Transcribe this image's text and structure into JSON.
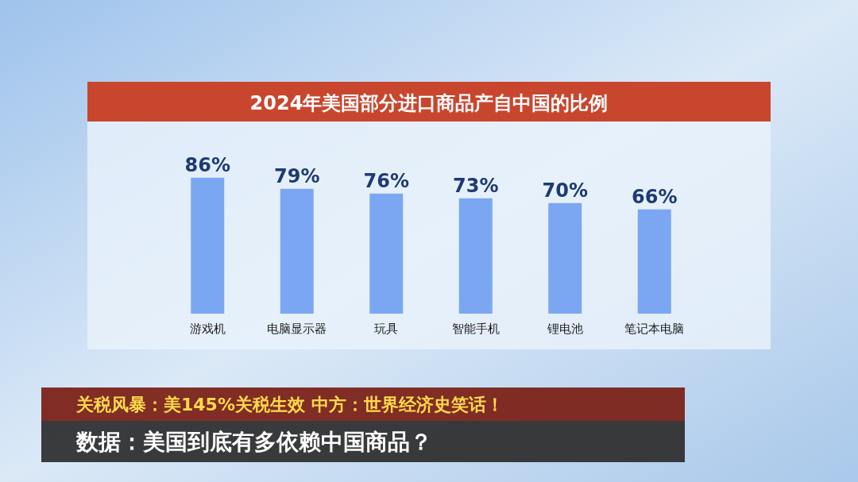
{
  "chart_data": {
    "type": "bar",
    "title": "2024年美国部分进口商品产自中国的比例",
    "categories": [
      "游戏机",
      "电脑显示器",
      "玩具",
      "智能手机",
      "锂电池",
      "笔记本电脑"
    ],
    "values": [
      86,
      79,
      76,
      73,
      70,
      66
    ],
    "value_labels": [
      "86%",
      "79%",
      "76%",
      "73%",
      "70%",
      "66%"
    ],
    "color": "#7ba7f2",
    "annotations": [
      "关税风暴：美145%关税生效 中方：世界经济史笑话！",
      "数据：美国到底有多依赖中国商品？"
    ]
  }
}
